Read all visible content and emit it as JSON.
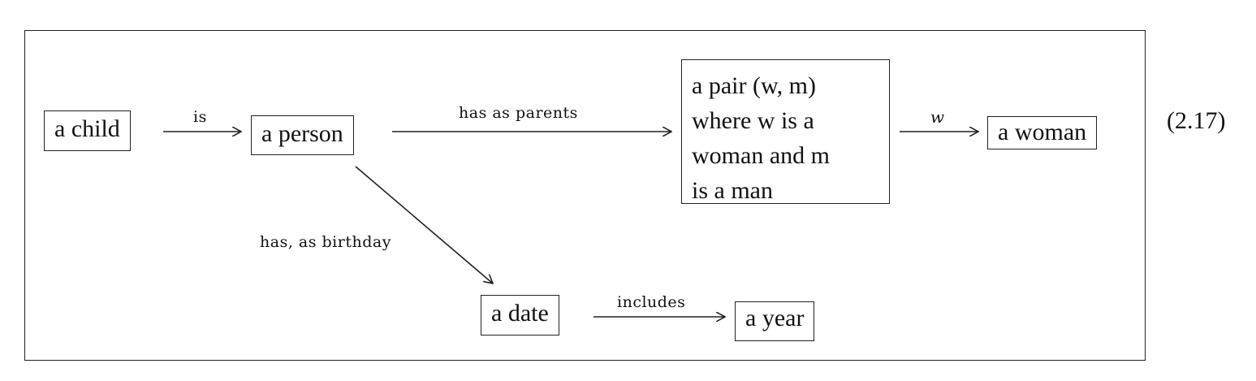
{
  "nodes": {
    "child": "a child",
    "person": "a person",
    "pair": {
      "line1": "a pair (w, m)",
      "line2": "where w is a",
      "line3": "woman and m",
      "line4": "is a man"
    },
    "woman": "a woman",
    "date": "a date",
    "year": "a year"
  },
  "edges": {
    "is": "is",
    "has_as_parents": "has as parents",
    "w": "w",
    "has_as_birthday": "has, as birthday",
    "includes": "includes"
  },
  "equation_number": "(2.17)"
}
